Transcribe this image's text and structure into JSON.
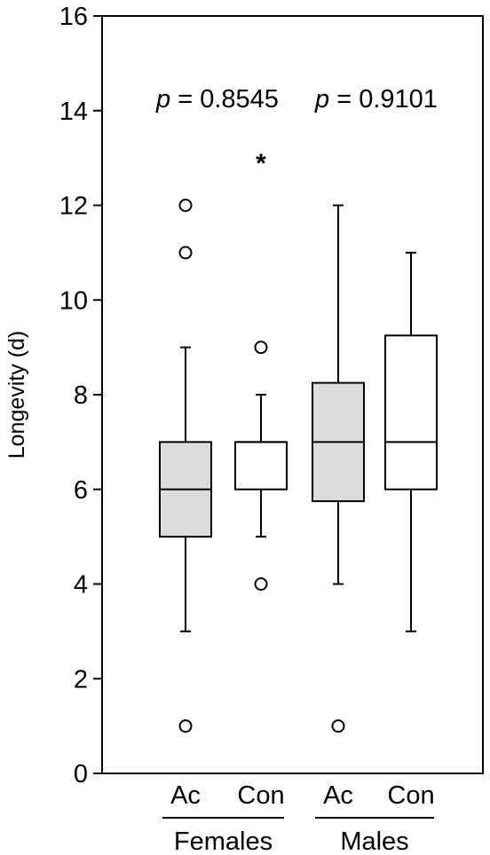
{
  "chart_data": {
    "type": "box",
    "title": "",
    "xlabel": "",
    "ylabel": "Longevity (d)",
    "ylim": [
      0,
      16
    ],
    "yticks": [
      0,
      2,
      4,
      6,
      8,
      10,
      12,
      14,
      16
    ],
    "grid": false,
    "groups": [
      {
        "name": "Females",
        "p_prefix": "p",
        "p_text": " = 0.8545",
        "boxes": [
          {
            "label": "Ac",
            "fill": "#dcdcdc",
            "q1": 5,
            "median": 6,
            "q3": 7,
            "whisker_low": 3,
            "whisker_high": 9,
            "outliers": [
              1,
              11,
              12
            ],
            "extremes": []
          },
          {
            "label": "Con",
            "fill": "#ffffff",
            "q1": 6,
            "median": 7,
            "q3": 7,
            "whisker_low": 5,
            "whisker_high": 8,
            "outliers": [
              4,
              9
            ],
            "extremes": [
              13
            ]
          }
        ]
      },
      {
        "name": "Males",
        "p_prefix": "p",
        "p_text": " = 0.9101",
        "boxes": [
          {
            "label": "Ac",
            "fill": "#dcdcdc",
            "q1": 5.75,
            "median": 7,
            "q3": 8.25,
            "whisker_low": 4,
            "whisker_high": 12,
            "outliers": [
              1
            ],
            "extremes": []
          },
          {
            "label": "Con",
            "fill": "#ffffff",
            "q1": 6,
            "median": 7,
            "q3": 9.25,
            "whisker_low": 3,
            "whisker_high": 11,
            "outliers": [],
            "extremes": []
          }
        ]
      }
    ]
  }
}
